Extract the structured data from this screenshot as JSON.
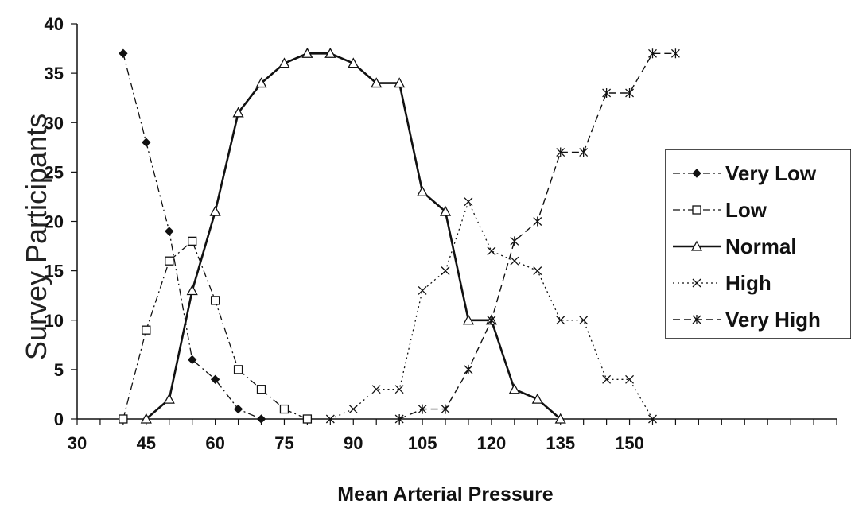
{
  "chart_data": {
    "type": "line",
    "title": "",
    "xlabel": "Mean Arterial Pressure",
    "ylabel": "Survey Participants",
    "xlim": [
      30,
      195
    ],
    "ylim": [
      0,
      40
    ],
    "x_ticks": [
      30,
      45,
      60,
      75,
      90,
      105,
      120,
      135,
      150
    ],
    "y_ticks": [
      0,
      5,
      10,
      15,
      20,
      25,
      30,
      35,
      40
    ],
    "grid": false,
    "legend_position": "right",
    "series": [
      {
        "name": "Very Low",
        "style": "dash-dot",
        "marker": "diamond-filled",
        "x": [
          40,
          45,
          50,
          55,
          60,
          65,
          70
        ],
        "y": [
          37,
          28,
          19,
          6,
          4,
          1,
          0
        ]
      },
      {
        "name": "Low",
        "style": "dash-dot",
        "marker": "square-open",
        "x": [
          40,
          45,
          50,
          55,
          60,
          65,
          70,
          75,
          80
        ],
        "y": [
          0,
          9,
          16,
          18,
          12,
          5,
          3,
          1,
          0
        ]
      },
      {
        "name": "Normal",
        "style": "solid",
        "marker": "triangle-open",
        "x": [
          45,
          50,
          55,
          60,
          65,
          70,
          75,
          80,
          85,
          90,
          95,
          100,
          105,
          110,
          115,
          120,
          125,
          130,
          135
        ],
        "y": [
          0,
          2,
          13,
          21,
          31,
          34,
          36,
          37,
          37,
          36,
          34,
          34,
          23,
          21,
          10,
          10,
          3,
          2,
          0
        ]
      },
      {
        "name": "High",
        "style": "dotted",
        "marker": "x",
        "x": [
          85,
          90,
          95,
          100,
          105,
          110,
          115,
          120,
          125,
          130,
          135,
          140,
          145,
          150,
          155
        ],
        "y": [
          0,
          1,
          3,
          3,
          13,
          15,
          22,
          17,
          16,
          15,
          10,
          10,
          4,
          4,
          0
        ]
      },
      {
        "name": "Very High",
        "style": "dashed",
        "marker": "asterisk",
        "x": [
          100,
          105,
          110,
          115,
          120,
          125,
          130,
          135,
          140,
          145,
          150,
          155,
          160
        ],
        "y": [
          0,
          1,
          1,
          5,
          10,
          18,
          20,
          27,
          27,
          33,
          33,
          37,
          37
        ]
      }
    ]
  }
}
